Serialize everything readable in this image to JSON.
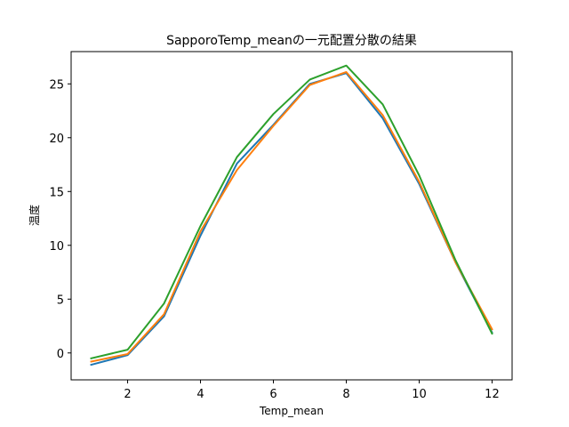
{
  "chart_data": {
    "type": "line",
    "title": "SapporoTemp_meanの一元配置分散の結果",
    "xlabel": "Temp_mean",
    "ylabel": "温度",
    "xlim": [
      0.45,
      12.55
    ],
    "ylim": [
      -2.5,
      28.0
    ],
    "xticks": [
      2,
      4,
      6,
      8,
      10,
      12
    ],
    "yticks": [
      0,
      5,
      10,
      15,
      20,
      25
    ],
    "grid": false,
    "x": [
      1,
      2,
      3,
      4,
      5,
      6,
      7,
      8,
      9,
      10,
      11,
      12
    ],
    "series": [
      {
        "color": "#1f77b4",
        "values": [
          -1.1,
          -0.2,
          3.4,
          10.9,
          17.6,
          21.2,
          25.0,
          26.0,
          21.8,
          15.7,
          8.4,
          1.9
        ]
      },
      {
        "color": "#ff7f0e",
        "values": [
          -0.8,
          -0.1,
          3.6,
          11.3,
          17.0,
          21.1,
          24.9,
          26.1,
          22.1,
          15.9,
          8.4,
          2.2
        ]
      },
      {
        "color": "#2ca02c",
        "values": [
          -0.5,
          0.3,
          4.6,
          11.8,
          18.2,
          22.2,
          25.4,
          26.7,
          23.1,
          16.5,
          8.6,
          1.8
        ]
      }
    ]
  }
}
